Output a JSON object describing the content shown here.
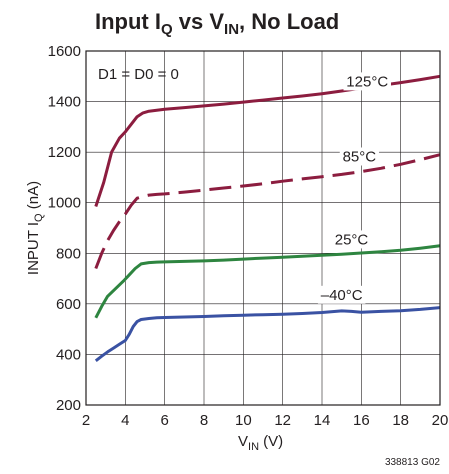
{
  "chart_data": {
    "type": "line",
    "title": {
      "pre": "Input I",
      "sub1": "Q",
      "mid": " vs V",
      "sub2": "IN",
      "post": ", No Load"
    },
    "xlabel": {
      "main": "V",
      "sub": "IN",
      "post": " (V)"
    },
    "ylabel": {
      "main": "INPUT I",
      "sub": "Q",
      "post": " (nA)"
    },
    "xlim": [
      2,
      20
    ],
    "ylim": [
      200,
      1600
    ],
    "xticks": [
      2,
      4,
      6,
      8,
      10,
      12,
      14,
      16,
      18,
      20
    ],
    "yticks": [
      200,
      400,
      600,
      800,
      1000,
      1200,
      1400,
      1600
    ],
    "grid": true,
    "annotation": "D1 = D0 = 0",
    "figure_id": "338813 G02",
    "series": [
      {
        "name": "125°C",
        "color": "#8c1d3f",
        "dash": "solid",
        "label_at": [
          16.3,
          1460
        ],
        "x": [
          2.5,
          2.9,
          3.3,
          3.7,
          4.0,
          4.3,
          4.6,
          4.9,
          5.2,
          5.6,
          6.0,
          7.0,
          8.0,
          9.0,
          10.0,
          11.0,
          12.0,
          13.0,
          14.0,
          15.0,
          16.0,
          17.0,
          18.0,
          19.0,
          20.0
        ],
        "y": [
          985,
          1080,
          1200,
          1255,
          1280,
          1310,
          1340,
          1355,
          1362,
          1366,
          1370,
          1376,
          1383,
          1390,
          1398,
          1406,
          1414,
          1422,
          1431,
          1442,
          1453,
          1464,
          1475,
          1487,
          1500
        ]
      },
      {
        "name": "85°C",
        "color": "#8c1d3f",
        "dash": "dashed",
        "label_at": [
          15.9,
          1163
        ],
        "x": [
          2.5,
          2.8,
          3.1,
          3.4,
          3.7,
          4.0,
          4.3,
          4.6,
          4.9,
          5.2,
          5.6,
          6.0,
          7.0,
          8.0,
          9.0,
          10.0,
          11.0,
          12.0,
          13.0,
          14.0,
          15.0,
          16.0,
          17.0,
          18.0,
          19.0,
          20.0
        ],
        "y": [
          740,
          800,
          850,
          890,
          925,
          955,
          990,
          1018,
          1025,
          1030,
          1033,
          1035,
          1042,
          1050,
          1058,
          1066,
          1075,
          1085,
          1094,
          1103,
          1112,
          1123,
          1136,
          1152,
          1170,
          1190
        ]
      },
      {
        "name": "25°C",
        "color": "#2e8540",
        "dash": "solid",
        "label_at": [
          15.5,
          835
        ],
        "x": [
          2.5,
          2.8,
          3.1,
          3.5,
          3.9,
          4.2,
          4.5,
          4.8,
          5.2,
          5.6,
          6.0,
          7.0,
          8.0,
          9.0,
          10.0,
          11.0,
          12.0,
          13.0,
          14.0,
          15.0,
          16.0,
          17.0,
          18.0,
          19.0,
          20.0
        ],
        "y": [
          545,
          590,
          630,
          660,
          690,
          715,
          740,
          758,
          763,
          765,
          766,
          768,
          770,
          773,
          777,
          781,
          784,
          788,
          792,
          796,
          801,
          806,
          812,
          820,
          830
        ]
      },
      {
        "name": "–40°C",
        "color": "#3a52a3",
        "dash": "solid",
        "label_at": [
          15.0,
          616
        ],
        "x": [
          2.5,
          2.8,
          3.1,
          3.4,
          3.7,
          4.0,
          4.2,
          4.4,
          4.6,
          4.8,
          5.2,
          5.6,
          6.0,
          7.0,
          8.0,
          9.0,
          10.0,
          11.0,
          12.0,
          13.0,
          14.0,
          15.0,
          15.5,
          16.0,
          17.0,
          18.0,
          19.0,
          20.0
        ],
        "y": [
          375,
          393,
          410,
          425,
          440,
          455,
          480,
          510,
          530,
          538,
          542,
          545,
          546,
          548,
          550,
          553,
          555,
          557,
          559,
          562,
          566,
          572,
          570,
          567,
          570,
          573,
          578,
          585
        ]
      }
    ]
  }
}
